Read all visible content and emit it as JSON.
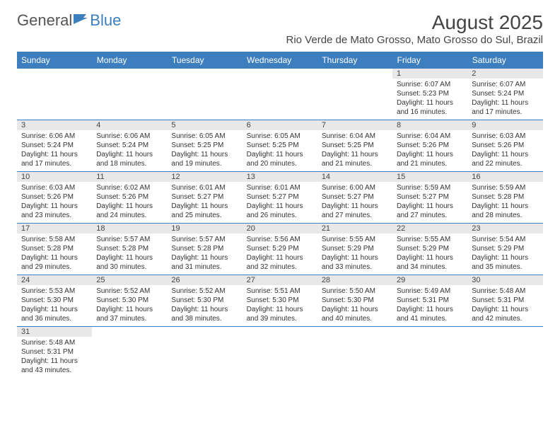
{
  "logo": {
    "textA": "General",
    "textB": "Blue"
  },
  "title": "August 2025",
  "subtitle": "Rio Verde de Mato Grosso, Mato Grosso do Sul, Brazil",
  "colors": {
    "header_bg": "#3d7ebf",
    "header_text": "#ffffff",
    "daynum_bg": "#e8e8e8",
    "row_border": "#3d7ebf",
    "body_text": "#333333",
    "title_text": "#444444"
  },
  "fonts": {
    "title_size": 28,
    "subtitle_size": 15,
    "header_size": 12,
    "daynum_size": 11,
    "cell_size": 10
  },
  "dayHeaders": [
    "Sunday",
    "Monday",
    "Tuesday",
    "Wednesday",
    "Thursday",
    "Friday",
    "Saturday"
  ],
  "weeks": [
    [
      {
        "n": "",
        "sr": "",
        "ss": "",
        "dl": ""
      },
      {
        "n": "",
        "sr": "",
        "ss": "",
        "dl": ""
      },
      {
        "n": "",
        "sr": "",
        "ss": "",
        "dl": ""
      },
      {
        "n": "",
        "sr": "",
        "ss": "",
        "dl": ""
      },
      {
        "n": "",
        "sr": "",
        "ss": "",
        "dl": ""
      },
      {
        "n": "1",
        "sr": "Sunrise: 6:07 AM",
        "ss": "Sunset: 5:23 PM",
        "dl": "Daylight: 11 hours and 16 minutes."
      },
      {
        "n": "2",
        "sr": "Sunrise: 6:07 AM",
        "ss": "Sunset: 5:24 PM",
        "dl": "Daylight: 11 hours and 17 minutes."
      }
    ],
    [
      {
        "n": "3",
        "sr": "Sunrise: 6:06 AM",
        "ss": "Sunset: 5:24 PM",
        "dl": "Daylight: 11 hours and 17 minutes."
      },
      {
        "n": "4",
        "sr": "Sunrise: 6:06 AM",
        "ss": "Sunset: 5:24 PM",
        "dl": "Daylight: 11 hours and 18 minutes."
      },
      {
        "n": "5",
        "sr": "Sunrise: 6:05 AM",
        "ss": "Sunset: 5:25 PM",
        "dl": "Daylight: 11 hours and 19 minutes."
      },
      {
        "n": "6",
        "sr": "Sunrise: 6:05 AM",
        "ss": "Sunset: 5:25 PM",
        "dl": "Daylight: 11 hours and 20 minutes."
      },
      {
        "n": "7",
        "sr": "Sunrise: 6:04 AM",
        "ss": "Sunset: 5:25 PM",
        "dl": "Daylight: 11 hours and 21 minutes."
      },
      {
        "n": "8",
        "sr": "Sunrise: 6:04 AM",
        "ss": "Sunset: 5:26 PM",
        "dl": "Daylight: 11 hours and 21 minutes."
      },
      {
        "n": "9",
        "sr": "Sunrise: 6:03 AM",
        "ss": "Sunset: 5:26 PM",
        "dl": "Daylight: 11 hours and 22 minutes."
      }
    ],
    [
      {
        "n": "10",
        "sr": "Sunrise: 6:03 AM",
        "ss": "Sunset: 5:26 PM",
        "dl": "Daylight: 11 hours and 23 minutes."
      },
      {
        "n": "11",
        "sr": "Sunrise: 6:02 AM",
        "ss": "Sunset: 5:26 PM",
        "dl": "Daylight: 11 hours and 24 minutes."
      },
      {
        "n": "12",
        "sr": "Sunrise: 6:01 AM",
        "ss": "Sunset: 5:27 PM",
        "dl": "Daylight: 11 hours and 25 minutes."
      },
      {
        "n": "13",
        "sr": "Sunrise: 6:01 AM",
        "ss": "Sunset: 5:27 PM",
        "dl": "Daylight: 11 hours and 26 minutes."
      },
      {
        "n": "14",
        "sr": "Sunrise: 6:00 AM",
        "ss": "Sunset: 5:27 PM",
        "dl": "Daylight: 11 hours and 27 minutes."
      },
      {
        "n": "15",
        "sr": "Sunrise: 5:59 AM",
        "ss": "Sunset: 5:27 PM",
        "dl": "Daylight: 11 hours and 27 minutes."
      },
      {
        "n": "16",
        "sr": "Sunrise: 5:59 AM",
        "ss": "Sunset: 5:28 PM",
        "dl": "Daylight: 11 hours and 28 minutes."
      }
    ],
    [
      {
        "n": "17",
        "sr": "Sunrise: 5:58 AM",
        "ss": "Sunset: 5:28 PM",
        "dl": "Daylight: 11 hours and 29 minutes."
      },
      {
        "n": "18",
        "sr": "Sunrise: 5:57 AM",
        "ss": "Sunset: 5:28 PM",
        "dl": "Daylight: 11 hours and 30 minutes."
      },
      {
        "n": "19",
        "sr": "Sunrise: 5:57 AM",
        "ss": "Sunset: 5:28 PM",
        "dl": "Daylight: 11 hours and 31 minutes."
      },
      {
        "n": "20",
        "sr": "Sunrise: 5:56 AM",
        "ss": "Sunset: 5:29 PM",
        "dl": "Daylight: 11 hours and 32 minutes."
      },
      {
        "n": "21",
        "sr": "Sunrise: 5:55 AM",
        "ss": "Sunset: 5:29 PM",
        "dl": "Daylight: 11 hours and 33 minutes."
      },
      {
        "n": "22",
        "sr": "Sunrise: 5:55 AM",
        "ss": "Sunset: 5:29 PM",
        "dl": "Daylight: 11 hours and 34 minutes."
      },
      {
        "n": "23",
        "sr": "Sunrise: 5:54 AM",
        "ss": "Sunset: 5:29 PM",
        "dl": "Daylight: 11 hours and 35 minutes."
      }
    ],
    [
      {
        "n": "24",
        "sr": "Sunrise: 5:53 AM",
        "ss": "Sunset: 5:30 PM",
        "dl": "Daylight: 11 hours and 36 minutes."
      },
      {
        "n": "25",
        "sr": "Sunrise: 5:52 AM",
        "ss": "Sunset: 5:30 PM",
        "dl": "Daylight: 11 hours and 37 minutes."
      },
      {
        "n": "26",
        "sr": "Sunrise: 5:52 AM",
        "ss": "Sunset: 5:30 PM",
        "dl": "Daylight: 11 hours and 38 minutes."
      },
      {
        "n": "27",
        "sr": "Sunrise: 5:51 AM",
        "ss": "Sunset: 5:30 PM",
        "dl": "Daylight: 11 hours and 39 minutes."
      },
      {
        "n": "28",
        "sr": "Sunrise: 5:50 AM",
        "ss": "Sunset: 5:30 PM",
        "dl": "Daylight: 11 hours and 40 minutes."
      },
      {
        "n": "29",
        "sr": "Sunrise: 5:49 AM",
        "ss": "Sunset: 5:31 PM",
        "dl": "Daylight: 11 hours and 41 minutes."
      },
      {
        "n": "30",
        "sr": "Sunrise: 5:48 AM",
        "ss": "Sunset: 5:31 PM",
        "dl": "Daylight: 11 hours and 42 minutes."
      }
    ],
    [
      {
        "n": "31",
        "sr": "Sunrise: 5:48 AM",
        "ss": "Sunset: 5:31 PM",
        "dl": "Daylight: 11 hours and 43 minutes."
      },
      {
        "n": "",
        "sr": "",
        "ss": "",
        "dl": ""
      },
      {
        "n": "",
        "sr": "",
        "ss": "",
        "dl": ""
      },
      {
        "n": "",
        "sr": "",
        "ss": "",
        "dl": ""
      },
      {
        "n": "",
        "sr": "",
        "ss": "",
        "dl": ""
      },
      {
        "n": "",
        "sr": "",
        "ss": "",
        "dl": ""
      },
      {
        "n": "",
        "sr": "",
        "ss": "",
        "dl": ""
      }
    ]
  ]
}
